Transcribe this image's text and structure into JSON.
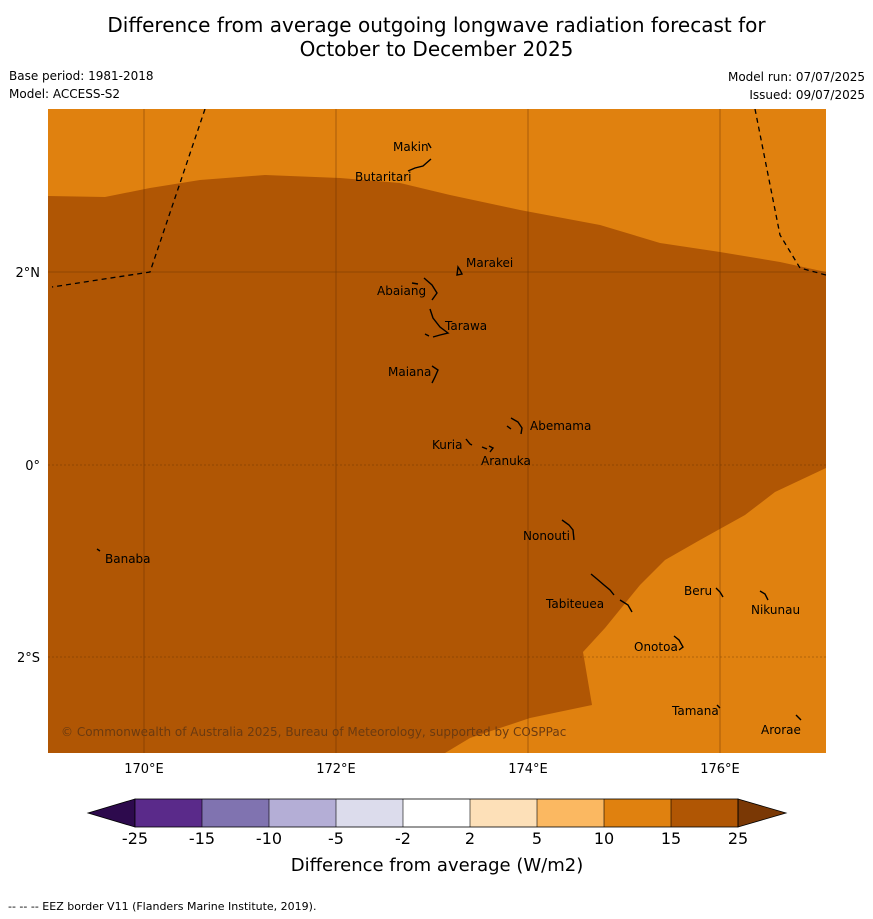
{
  "title": {
    "line1": "Difference from average outgoing longwave radiation forecast for",
    "line2": "October to December 2025"
  },
  "meta": {
    "base_period": "Base period: 1981-2018",
    "model": "Model: ACCESS-S2",
    "model_run": "Model run: 07/07/2025",
    "issued": "Issued: 09/07/2025"
  },
  "colors": {
    "class_10_15": "#e0810f",
    "class_15_25": "#b05604",
    "gridline": "#5a2a00",
    "colorbar": [
      "#2d0a4d",
      "#5a2a8a",
      "#8073b0",
      "#b4aed6",
      "#dcdcec",
      "#ffffff",
      "#fde0b8",
      "#fbb861",
      "#e0810f",
      "#b05604",
      "#7a3805"
    ]
  },
  "map": {
    "lon_labels": [
      "170°E",
      "172°E",
      "174°E",
      "176°E"
    ],
    "lat_labels": [
      "2°N",
      "0°",
      "2°S"
    ],
    "islands": [
      "Makin",
      "Butaritari",
      "Marakei",
      "Abaiang",
      "Tarawa",
      "Maiana",
      "Abemama",
      "Kuria",
      "Aranuka",
      "Banaba",
      "Nonouti",
      "Beru",
      "Nikunau",
      "Tabiteuea",
      "Onotoa",
      "Tamana",
      "Arorae"
    ],
    "copyright": "© Commonwealth of Australia 2025, Bureau of Meteorology, supported by COSPPac"
  },
  "colorbar": {
    "ticks": [
      "-25",
      "-15",
      "-10",
      "-5",
      "-2",
      "2",
      "5",
      "10",
      "15",
      "25"
    ],
    "label": "Difference from average (W/m2)"
  },
  "footnote": "--  --  -- EEZ border V11 (Flanders Marine Institute, 2019)."
}
